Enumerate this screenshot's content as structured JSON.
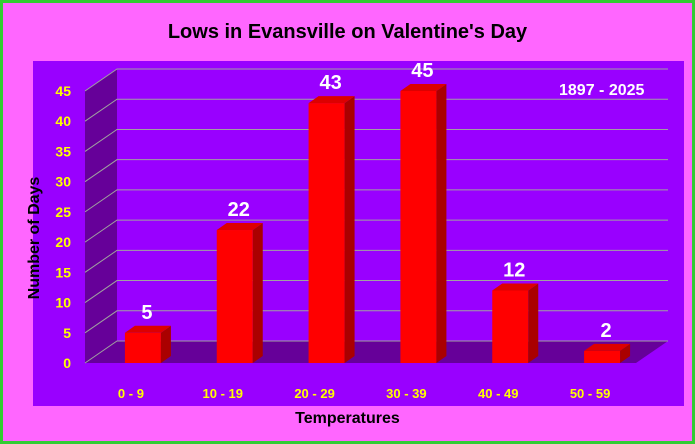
{
  "colors": {
    "background": "#ff66ff",
    "border": "#33cc33",
    "plot_area": "#9900ff",
    "wall": "#660099",
    "bar_front": "#ff0000",
    "bar_side": "#aa0000",
    "bar_top": "#dd0000",
    "tick_label": "#ffff00",
    "data_label": "#ffffff",
    "gridline": "#a0a0a0"
  },
  "chart_data": {
    "type": "bar",
    "title": "Lows in Evansville on Valentine's Day",
    "annotation": "1897 - 2025",
    "xlabel": "Temperatures",
    "ylabel": "Number of Days",
    "categories": [
      "0 - 9",
      "10 - 19",
      "20 - 29",
      "30 - 39",
      "40 - 49",
      "50 - 59"
    ],
    "values": [
      5,
      22,
      43,
      45,
      12,
      2
    ],
    "ylim": [
      0,
      45
    ],
    "yticks": [
      0,
      5,
      10,
      15,
      20,
      25,
      30,
      35,
      40,
      45
    ],
    "grid": true,
    "three_d": true
  }
}
